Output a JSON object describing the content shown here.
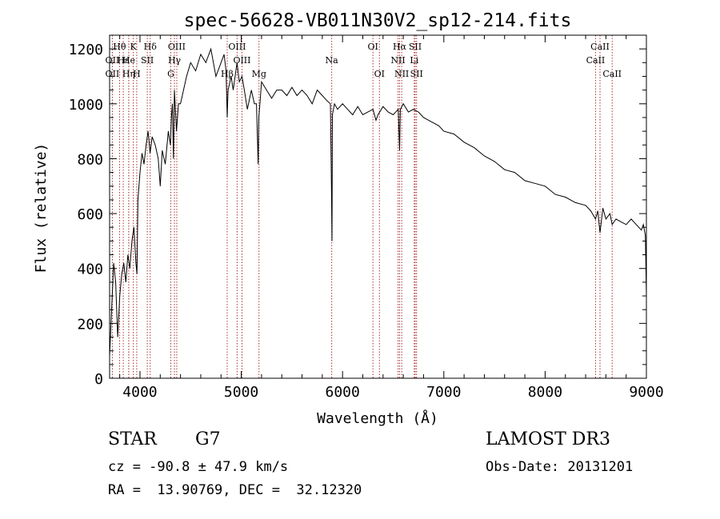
{
  "chart_data": {
    "type": "line",
    "title": "spec-56628-VB011N30V2_sp12-214.fits",
    "xlabel": "Wavelength (Å)",
    "ylabel": "Flux (relative)",
    "xlim": [
      3700,
      9000
    ],
    "ylim": [
      0,
      1250
    ],
    "xticks": [
      4000,
      5000,
      6000,
      7000,
      8000,
      9000
    ],
    "yticks": [
      0,
      200,
      400,
      600,
      800,
      1000,
      1200
    ],
    "grid": false,
    "series": [
      {
        "name": "flux",
        "x": [
          3700,
          3720,
          3740,
          3760,
          3780,
          3800,
          3820,
          3840,
          3860,
          3880,
          3900,
          3920,
          3940,
          3960,
          3970,
          3980,
          4000,
          4020,
          4040,
          4060,
          4080,
          4100,
          4120,
          4150,
          4180,
          4200,
          4220,
          4250,
          4280,
          4300,
          4310,
          4320,
          4330,
          4340,
          4360,
          4380,
          4400,
          4430,
          4460,
          4500,
          4550,
          4600,
          4650,
          4700,
          4750,
          4800,
          4830,
          4850,
          4861,
          4870,
          4900,
          4920,
          4958,
          4980,
          5007,
          5030,
          5060,
          5100,
          5130,
          5150,
          5167,
          5173,
          5184,
          5200,
          5250,
          5300,
          5350,
          5400,
          5450,
          5500,
          5550,
          5600,
          5650,
          5700,
          5750,
          5800,
          5850,
          5880,
          5890,
          5896,
          5900,
          5920,
          5950,
          6000,
          6050,
          6100,
          6150,
          6200,
          6250,
          6300,
          6330,
          6350,
          6400,
          6450,
          6500,
          6550,
          6563,
          6570,
          6600,
          6650,
          6700,
          6750,
          6800,
          6850,
          6900,
          6950,
          7000,
          7100,
          7200,
          7300,
          7400,
          7500,
          7600,
          7700,
          7800,
          7900,
          8000,
          8100,
          8200,
          8300,
          8400,
          8450,
          8498,
          8520,
          8542,
          8570,
          8600,
          8640,
          8662,
          8700,
          8750,
          8800,
          8850,
          8900,
          8950,
          8970,
          8990,
          9000
        ],
        "y": [
          80,
          250,
          420,
          350,
          150,
          300,
          380,
          420,
          350,
          450,
          400,
          500,
          550,
          420,
          380,
          650,
          750,
          820,
          780,
          850,
          900,
          820,
          880,
          850,
          800,
          700,
          830,
          780,
          900,
          850,
          950,
          1000,
          800,
          1050,
          900,
          1000,
          1000,
          1050,
          1100,
          1150,
          1120,
          1180,
          1150,
          1200,
          1100,
          1150,
          1180,
          1120,
          950,
          1050,
          1100,
          1050,
          1150,
          1080,
          1100,
          1050,
          980,
          1050,
          1000,
          1000,
          780,
          950,
          1000,
          1080,
          1050,
          1020,
          1050,
          1050,
          1030,
          1060,
          1030,
          1050,
          1030,
          1000,
          1050,
          1030,
          1010,
          1000,
          700,
          500,
          960,
          1000,
          980,
          1000,
          980,
          960,
          990,
          960,
          970,
          980,
          940,
          960,
          990,
          970,
          960,
          980,
          830,
          980,
          1000,
          970,
          980,
          970,
          950,
          940,
          930,
          920,
          900,
          890,
          860,
          840,
          810,
          790,
          760,
          750,
          720,
          710,
          700,
          670,
          660,
          640,
          630,
          610,
          580,
          610,
          530,
          620,
          580,
          600,
          560,
          580,
          570,
          560,
          580,
          560,
          540,
          560,
          520,
          300
        ]
      }
    ],
    "lines": [
      {
        "label": "Hθ",
        "x": 3798,
        "row": 1
      },
      {
        "label": "OII",
        "x": 3727,
        "row": 2
      },
      {
        "label": "OII",
        "x": 3727,
        "row": 3
      },
      {
        "label": "Hε",
        "x": 3835,
        "row": 2
      },
      {
        "label": "Hη",
        "x": 3889,
        "row": 3
      },
      {
        "label": "K",
        "x": 3934,
        "row": 1
      },
      {
        "label": "He",
        "x": 3889,
        "row": 2
      },
      {
        "label": "H",
        "x": 3968,
        "row": 3
      },
      {
        "label": "Hδ",
        "x": 4101,
        "row": 1
      },
      {
        "label": "SII",
        "x": 4072,
        "row": 2
      },
      {
        "label": "OIII",
        "x": 4363,
        "row": 1
      },
      {
        "label": "Hγ",
        "x": 4340,
        "row": 2
      },
      {
        "label": "G",
        "x": 4304,
        "row": 3
      },
      {
        "label": "OIII",
        "x": 4959,
        "row": 1
      },
      {
        "label": "OIII",
        "x": 5007,
        "row": 2
      },
      {
        "label": "Hβ",
        "x": 4861,
        "row": 3
      },
      {
        "label": "Mg",
        "x": 5175,
        "row": 3
      },
      {
        "label": "Na",
        "x": 5893,
        "row": 2
      },
      {
        "label": "OI",
        "x": 6300,
        "row": 1
      },
      {
        "label": "OI",
        "x": 6364,
        "row": 3
      },
      {
        "label": "Hα",
        "x": 6563,
        "row": 1
      },
      {
        "label": "NII",
        "x": 6548,
        "row": 2
      },
      {
        "label": "NII",
        "x": 6584,
        "row": 3
      },
      {
        "label": "SII",
        "x": 6717,
        "row": 1
      },
      {
        "label": "Li",
        "x": 6708,
        "row": 2
      },
      {
        "label": "SII",
        "x": 6731,
        "row": 3
      },
      {
        "label": "CaII",
        "x": 8542,
        "row": 1
      },
      {
        "label": "CaII",
        "x": 8498,
        "row": 2
      },
      {
        "label": "CaII",
        "x": 8662,
        "row": 3
      }
    ]
  },
  "info": {
    "class": "STAR",
    "subclass": "G7",
    "survey": "LAMOST DR3",
    "cz": "cz = -90.8 ± 47.9 km/s",
    "obs_date": "Obs-Date: 20131201",
    "coords": "RA =  13.90769, DEC =  32.12320"
  },
  "colors": {
    "spectrum": "#000000",
    "line_marker": "#a83232",
    "axis": "#000000"
  }
}
